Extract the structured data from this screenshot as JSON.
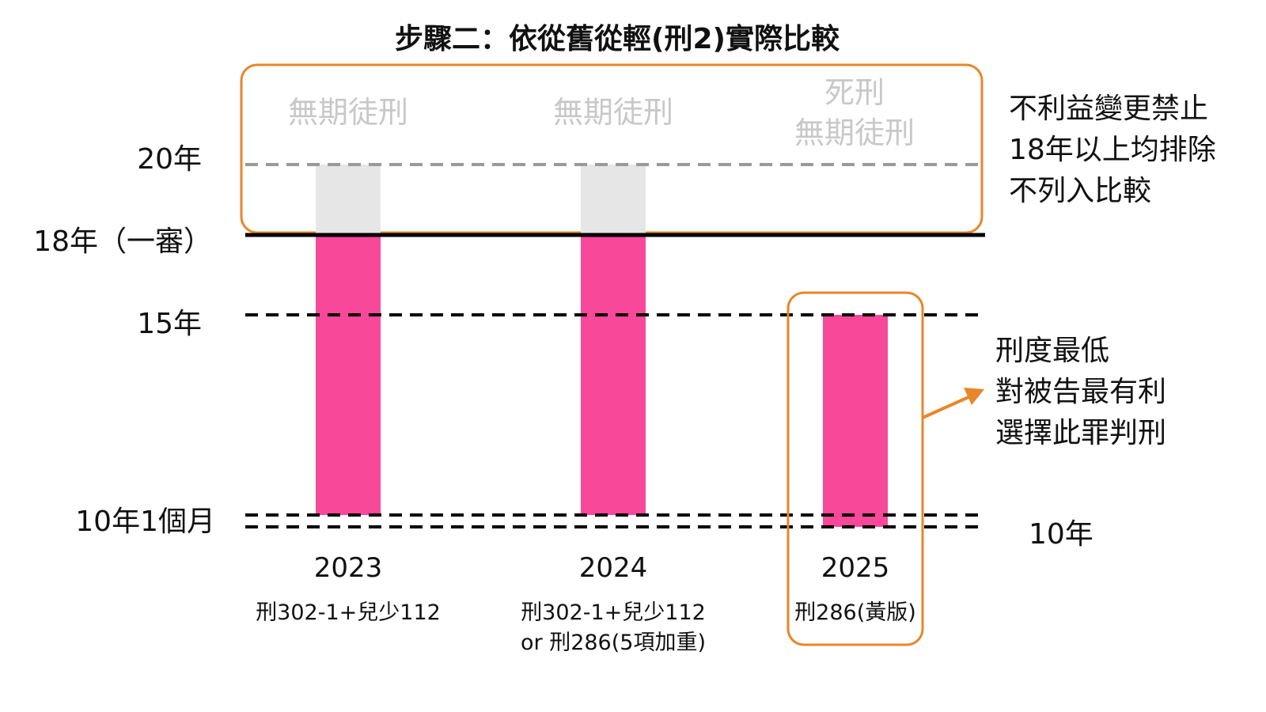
{
  "title": "步驟二：依從舊從輕(刑2)實際比較",
  "y_axis_labels": {
    "y20": "20年",
    "y18": "18年（一審）",
    "y15": "15年",
    "y10_1": "10年1個月",
    "y10": "10年"
  },
  "excluded_zone": {
    "col2023": "無期徒刑",
    "col2024": "無期徒刑",
    "col2025_line1": "死刑",
    "col2025_line2": "無期徒刑",
    "note_lines": [
      "不利益變更禁止",
      "18年以上均排除",
      "不列入比較"
    ],
    "border_color": "#e8862a"
  },
  "chosen_note_lines": [
    "刑度最低",
    "對被告最有利",
    "選擇此罪判刑"
  ],
  "columns": [
    {
      "year": "2023",
      "law_lines": [
        "刑302-1+兒少112"
      ]
    },
    {
      "year": "2024",
      "law_lines": [
        "刑302-1+兒少112",
        "or 刑286(5項加重)"
      ]
    },
    {
      "year": "2025",
      "law_lines": [
        "刑286(黃版)"
      ]
    }
  ],
  "bar_values_years": [
    {
      "year": "2023",
      "min": 10.083,
      "max": 20,
      "excluded_above": 18
    },
    {
      "year": "2024",
      "min": 10.083,
      "max": 20,
      "excluded_above": 18
    },
    {
      "year": "2025",
      "min": 10,
      "max": 15
    }
  ],
  "colors": {
    "bar": "#f7489a",
    "excluded_bar": "#e6e6e6",
    "highlight": "#e8862a",
    "ghost_text": "#c8c8c8"
  }
}
